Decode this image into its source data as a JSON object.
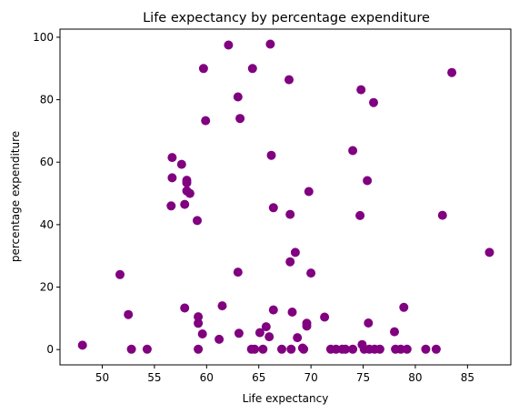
{
  "chart_data": {
    "type": "scatter",
    "title": "Life expectancy by percentage expenditure",
    "xlabel": "Life expectancy",
    "ylabel": "percentage expenditure",
    "xlim": [
      45.95,
      89.15
    ],
    "ylim": [
      -4.9,
      102.6
    ],
    "xticks": [
      50,
      55,
      60,
      65,
      70,
      75,
      80,
      85
    ],
    "yticks": [
      0,
      20,
      40,
      60,
      80,
      100
    ],
    "grid": false,
    "marker_color": "#800080",
    "points": [
      [
        48.1,
        1.4
      ],
      [
        51.7,
        24.0
      ],
      [
        52.5,
        11.2
      ],
      [
        52.8,
        0.1
      ],
      [
        54.3,
        0.1
      ],
      [
        56.7,
        61.5
      ],
      [
        56.7,
        55.0
      ],
      [
        56.6,
        46.0
      ],
      [
        57.6,
        59.3
      ],
      [
        57.9,
        46.5
      ],
      [
        58.1,
        54.2
      ],
      [
        58.1,
        53.4
      ],
      [
        58.1,
        50.8
      ],
      [
        58.4,
        50.0
      ],
      [
        57.9,
        13.3
      ],
      [
        59.1,
        41.3
      ],
      [
        59.2,
        10.5
      ],
      [
        59.2,
        8.4
      ],
      [
        59.6,
        5.0
      ],
      [
        59.2,
        0.1
      ],
      [
        59.7,
        90.0
      ],
      [
        59.9,
        73.3
      ],
      [
        61.2,
        3.3
      ],
      [
        61.5,
        14.0
      ],
      [
        62.1,
        97.5
      ],
      [
        63.0,
        80.9
      ],
      [
        63.2,
        74.0
      ],
      [
        63.0,
        24.8
      ],
      [
        63.1,
        5.2
      ],
      [
        64.4,
        90.0
      ],
      [
        64.3,
        0.1
      ],
      [
        64.6,
        0.1
      ],
      [
        65.1,
        5.4
      ],
      [
        65.4,
        0.1
      ],
      [
        65.7,
        7.3
      ],
      [
        66.0,
        4.1
      ],
      [
        66.1,
        97.8
      ],
      [
        66.2,
        62.2
      ],
      [
        66.4,
        45.4
      ],
      [
        66.4,
        12.7
      ],
      [
        67.2,
        0.1
      ],
      [
        67.9,
        86.4
      ],
      [
        68.0,
        43.3
      ],
      [
        68.0,
        28.1
      ],
      [
        68.1,
        0.1
      ],
      [
        68.2,
        12.0
      ],
      [
        68.5,
        31.1
      ],
      [
        68.7,
        3.8
      ],
      [
        69.2,
        0.5
      ],
      [
        69.3,
        0.1
      ],
      [
        69.6,
        8.4
      ],
      [
        69.6,
        7.5
      ],
      [
        69.8,
        50.6
      ],
      [
        70.0,
        24.5
      ],
      [
        71.3,
        10.4
      ],
      [
        71.9,
        0.1
      ],
      [
        72.4,
        0.1
      ],
      [
        73.0,
        0.1
      ],
      [
        73.3,
        0.1
      ],
      [
        74.0,
        63.7
      ],
      [
        74.0,
        0.1
      ],
      [
        74.7,
        42.9
      ],
      [
        74.8,
        83.2
      ],
      [
        74.9,
        1.6
      ],
      [
        75.1,
        0.1
      ],
      [
        75.4,
        54.1
      ],
      [
        75.5,
        8.5
      ],
      [
        75.6,
        0.1
      ],
      [
        76.0,
        79.1
      ],
      [
        76.1,
        0.1
      ],
      [
        76.6,
        0.1
      ],
      [
        78.0,
        5.7
      ],
      [
        78.1,
        0.1
      ],
      [
        78.6,
        0.1
      ],
      [
        78.9,
        13.5
      ],
      [
        79.2,
        0.1
      ],
      [
        81.0,
        0.1
      ],
      [
        82.0,
        0.1
      ],
      [
        82.6,
        43.0
      ],
      [
        83.5,
        88.7
      ],
      [
        87.1,
        31.1
      ]
    ]
  }
}
